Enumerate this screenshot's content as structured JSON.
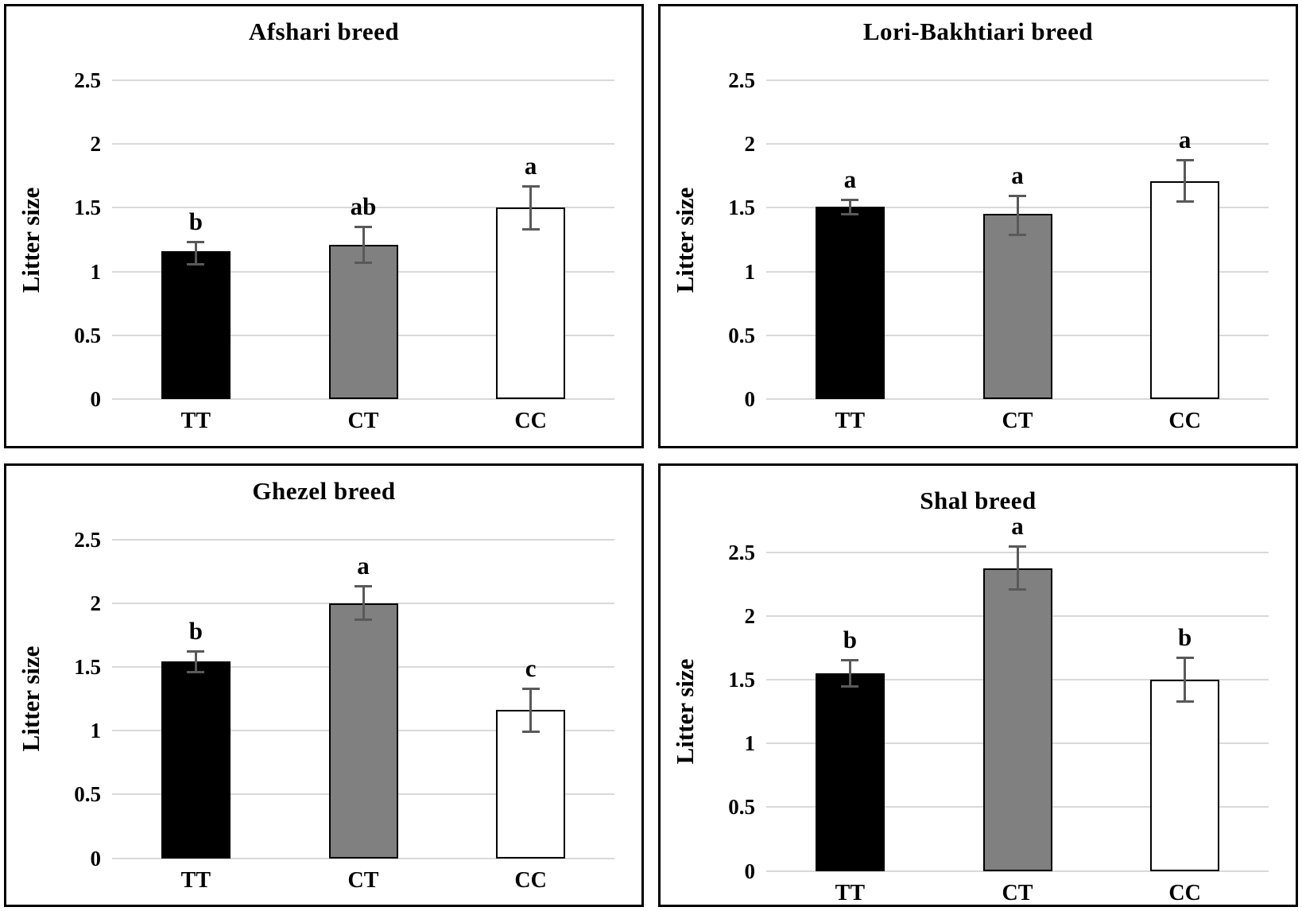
{
  "figure": {
    "ylabel": "Litter size",
    "categories": [
      "TT",
      "CT",
      "CC"
    ],
    "colors": {
      "bar_fill": [
        "#000000",
        "#808080",
        "#ffffff"
      ],
      "bar_border": "#000000",
      "error_bar": "#595959",
      "gridline": "#d9d9d9",
      "panel_border": "#000000",
      "text": "#000000"
    }
  },
  "chart_data": [
    {
      "type": "bar",
      "title": "Afshari breed",
      "xlabel": "",
      "ylabel": "Litter size",
      "categories": [
        "TT",
        "CT",
        "CC"
      ],
      "values": [
        1.16,
        1.21,
        1.5
      ],
      "error_low": [
        1.05,
        1.06,
        1.32
      ],
      "error_high": [
        1.24,
        1.36,
        1.68
      ],
      "sig_letters": [
        "b",
        "ab",
        "a"
      ],
      "bar_colors": [
        "#000000",
        "#808080",
        "#ffffff"
      ],
      "ylim": [
        0,
        2.5
      ],
      "ytick_step": 0.5,
      "grid": true,
      "legend": "none"
    },
    {
      "type": "bar",
      "title": "Lori-Bakhtiari breed",
      "xlabel": "",
      "ylabel": "Litter size",
      "categories": [
        "TT",
        "CT",
        "CC"
      ],
      "values": [
        1.51,
        1.45,
        1.71
      ],
      "error_low": [
        1.44,
        1.28,
        1.54
      ],
      "error_high": [
        1.57,
        1.6,
        1.88
      ],
      "sig_letters": [
        "a",
        "a",
        "a"
      ],
      "bar_colors": [
        "#000000",
        "#808080",
        "#ffffff"
      ],
      "ylim": [
        0,
        2.5
      ],
      "ytick_step": 0.5,
      "grid": true,
      "legend": "none"
    },
    {
      "type": "bar",
      "title": "Ghezel breed",
      "xlabel": "",
      "ylabel": "Litter size",
      "categories": [
        "TT",
        "CT",
        "CC"
      ],
      "values": [
        1.54,
        2.0,
        1.16
      ],
      "error_low": [
        1.45,
        1.86,
        0.98
      ],
      "error_high": [
        1.63,
        2.14,
        1.34
      ],
      "sig_letters": [
        "b",
        "a",
        "c"
      ],
      "bar_colors": [
        "#000000",
        "#808080",
        "#ffffff"
      ],
      "ylim": [
        0,
        2.5
      ],
      "ytick_step": 0.5,
      "grid": true,
      "legend": "none"
    },
    {
      "type": "bar",
      "title": "Shal breed",
      "xlabel": "",
      "ylabel": "Litter size",
      "categories": [
        "TT",
        "CT",
        "CC"
      ],
      "values": [
        1.55,
        2.37,
        1.5
      ],
      "error_low": [
        1.44,
        2.2,
        1.32
      ],
      "error_high": [
        1.66,
        2.55,
        1.68
      ],
      "sig_letters": [
        "b",
        "a",
        "b"
      ],
      "bar_colors": [
        "#000000",
        "#808080",
        "#ffffff"
      ],
      "ylim": [
        0,
        2.5
      ],
      "ytick_step": 0.5,
      "grid": true,
      "legend": "none"
    }
  ]
}
